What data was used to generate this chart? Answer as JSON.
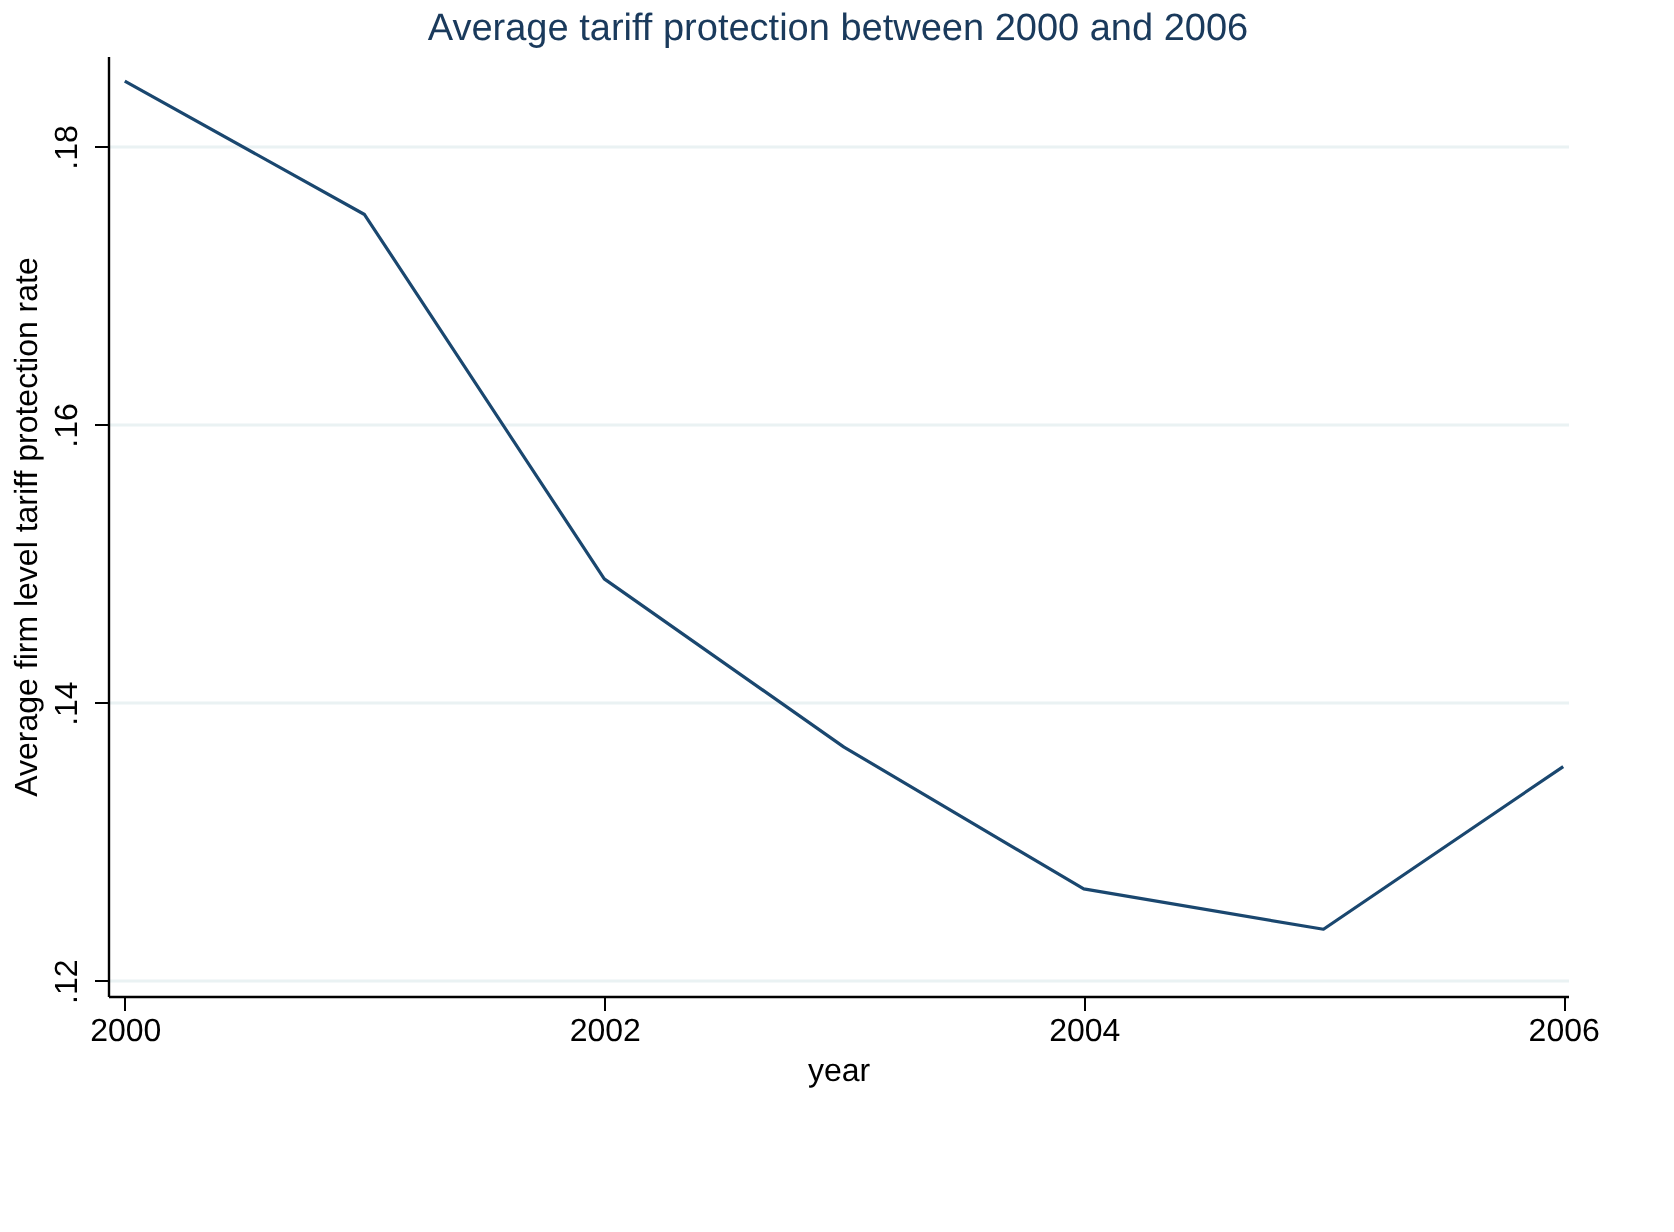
{
  "chart_data": {
    "type": "line",
    "title": "Average tariff protection between 2000 and 2006",
    "xlabel": "year",
    "ylabel": "Average firm level tariff protection rate",
    "x": [
      2000,
      2001,
      2002,
      2003,
      2004,
      2005,
      2006
    ],
    "series": [
      {
        "color": "#1a476f",
        "values": [
          0.1847,
          0.1751,
          0.1489,
          0.1368,
          0.1266,
          0.1237,
          0.1354
        ]
      }
    ],
    "xlim": [
      1999.93,
      2006.02
    ],
    "xticks": [
      2000,
      2002,
      2004,
      2006
    ],
    "ylim": [
      0.1189,
      0.1865
    ],
    "yticks": [
      {
        "value": 0.12,
        "label": ".12"
      },
      {
        "value": 0.14,
        "label": ".14"
      },
      {
        "value": 0.16,
        "label": ".16"
      },
      {
        "value": 0.18,
        "label": ".18"
      }
    ],
    "grid": "y",
    "marker": "none",
    "line_style": "solid"
  }
}
